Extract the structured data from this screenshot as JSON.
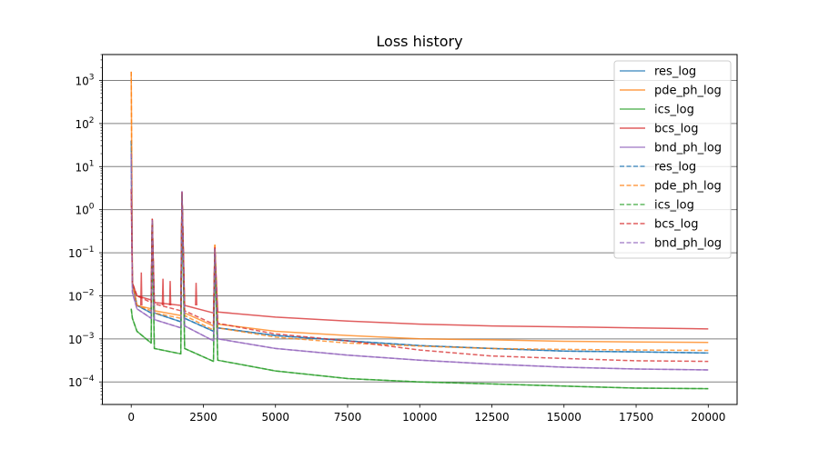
{
  "chart_data": {
    "type": "line",
    "title": "Loss history",
    "xlabel": "",
    "ylabel": "",
    "yscale": "log",
    "xlim": [
      -1000,
      21000
    ],
    "ylim": [
      3e-05,
      4000
    ],
    "grid": "horizontal",
    "legend_placement": "top-right",
    "x_ticks": [
      0,
      2500,
      5000,
      7500,
      10000,
      12500,
      15000,
      17500,
      20000
    ],
    "x_tick_labels": [
      "0",
      "2500",
      "5000",
      "7500",
      "10000",
      "12500",
      "15000",
      "17500",
      "20000"
    ],
    "y_ticks": [
      0.0001,
      0.001,
      0.01,
      0.1,
      1,
      10,
      100,
      1000
    ],
    "y_tick_labels": [
      {
        "base": "10",
        "exp": "−4"
      },
      {
        "base": "10",
        "exp": "−3"
      },
      {
        "base": "10",
        "exp": "−2"
      },
      {
        "base": "10",
        "exp": "−1"
      },
      {
        "base": "10",
        "exp": "0"
      },
      {
        "base": "10",
        "exp": "1"
      },
      {
        "base": "10",
        "exp": "2"
      },
      {
        "base": "10",
        "exp": "3"
      }
    ],
    "series": [
      {
        "name": "res_log",
        "color": "#1f77b4",
        "style": "solid",
        "x": [
          0,
          40,
          200,
          690,
          730,
          800,
          1720,
          1760,
          1850,
          2850,
          2900,
          3000,
          5000,
          7500,
          10000,
          12500,
          15000,
          17500,
          20000
        ],
        "y": [
          40,
          0.02,
          0.006,
          0.004,
          0.55,
          0.004,
          0.0025,
          2.4,
          0.003,
          0.0015,
          0.12,
          0.0018,
          0.0012,
          0.0009,
          0.0007,
          0.0006,
          0.00052,
          0.0005,
          0.00047
        ]
      },
      {
        "name": "pde_ph_log",
        "color": "#ff7f0e",
        "style": "solid",
        "x": [
          0,
          40,
          200,
          690,
          730,
          800,
          1720,
          1760,
          1850,
          2850,
          2900,
          3000,
          5000,
          7500,
          10000,
          12500,
          15000,
          17500,
          20000
        ],
        "y": [
          1600,
          0.02,
          0.006,
          0.005,
          0.6,
          0.0045,
          0.0035,
          2.5,
          0.004,
          0.002,
          0.15,
          0.0022,
          0.0015,
          0.0012,
          0.001,
          0.00095,
          0.00088,
          0.00085,
          0.00083
        ]
      },
      {
        "name": "ics_log",
        "color": "#2ca02c",
        "style": "solid",
        "x": [
          0,
          40,
          200,
          690,
          730,
          800,
          1720,
          1760,
          1850,
          2850,
          2900,
          3000,
          5000,
          7500,
          10000,
          12500,
          15000,
          17500,
          20000
        ],
        "y": [
          0.005,
          0.003,
          0.0015,
          0.0008,
          0.5,
          0.0006,
          0.00045,
          2.2,
          0.0006,
          0.0003,
          0.1,
          0.00032,
          0.00018,
          0.00012,
          0.0001,
          9e-05,
          8e-05,
          7.2e-05,
          7e-05
        ]
      },
      {
        "name": "bcs_log",
        "color": "#d62728",
        "style": "solid",
        "x": [
          0,
          40,
          200,
          690,
          730,
          800,
          1720,
          1760,
          1850,
          2850,
          2900,
          3000,
          5000,
          7500,
          10000,
          12500,
          15000,
          17500,
          20000
        ],
        "y": [
          3,
          0.02,
          0.01,
          0.008,
          0.6,
          0.007,
          0.006,
          2.5,
          0.006,
          0.004,
          0.13,
          0.0042,
          0.0032,
          0.0026,
          0.0022,
          0.002,
          0.0019,
          0.0018,
          0.0017
        ]
      },
      {
        "name": "bnd_ph_log",
        "color": "#9467bd",
        "style": "solid",
        "x": [
          0,
          40,
          200,
          690,
          730,
          800,
          1720,
          1760,
          1850,
          2850,
          2900,
          3000,
          5000,
          7500,
          10000,
          12500,
          15000,
          17500,
          20000
        ],
        "y": [
          20,
          0.012,
          0.005,
          0.003,
          0.6,
          0.0028,
          0.0018,
          2.6,
          0.002,
          0.0009,
          0.12,
          0.001,
          0.0006,
          0.00042,
          0.00032,
          0.00026,
          0.00022,
          0.0002,
          0.00019
        ]
      },
      {
        "name": "res_log",
        "color": "#1f77b4",
        "style": "dashed",
        "x": [
          0,
          40,
          200,
          690,
          730,
          800,
          1720,
          1760,
          1850,
          2850,
          2900,
          3000,
          5000,
          7500,
          10000,
          12500,
          15000,
          17500,
          20000
        ],
        "y": [
          40,
          0.02,
          0.006,
          0.004,
          0.55,
          0.004,
          0.0025,
          2.4,
          0.003,
          0.0015,
          0.12,
          0.0018,
          0.0012,
          0.0009,
          0.0007,
          0.0006,
          0.00052,
          0.0005,
          0.00047
        ]
      },
      {
        "name": "pde_ph_log",
        "color": "#ff7f0e",
        "style": "dashed",
        "x": [
          0,
          40,
          200,
          690,
          730,
          800,
          1720,
          1760,
          1850,
          2850,
          2900,
          3000,
          5000,
          7500,
          10000,
          12500,
          15000,
          17500,
          20000
        ],
        "y": [
          1600,
          0.02,
          0.006,
          0.0045,
          0.6,
          0.004,
          0.003,
          2.5,
          0.0035,
          0.0016,
          0.15,
          0.0018,
          0.0011,
          0.0008,
          0.00068,
          0.0006,
          0.00057,
          0.00055,
          0.00054
        ]
      },
      {
        "name": "ics_log",
        "color": "#2ca02c",
        "style": "dashed",
        "x": [
          0,
          40,
          200,
          690,
          730,
          800,
          1720,
          1760,
          1850,
          2850,
          2900,
          3000,
          5000,
          7500,
          10000,
          12500,
          15000,
          17500,
          20000
        ],
        "y": [
          0.005,
          0.003,
          0.0015,
          0.0008,
          0.5,
          0.0006,
          0.00045,
          2.2,
          0.0006,
          0.0003,
          0.1,
          0.00032,
          0.00018,
          0.00012,
          0.0001,
          9e-05,
          8e-05,
          7.2e-05,
          7e-05
        ]
      },
      {
        "name": "bcs_log",
        "color": "#d62728",
        "style": "dashed",
        "x": [
          0,
          40,
          200,
          690,
          730,
          800,
          1720,
          1760,
          1850,
          2850,
          2900,
          3000,
          5000,
          7500,
          10000,
          12500,
          15000,
          17500,
          20000
        ],
        "y": [
          3,
          0.02,
          0.01,
          0.007,
          0.6,
          0.0065,
          0.0045,
          2.5,
          0.0045,
          0.0022,
          0.13,
          0.0023,
          0.0013,
          0.0009,
          0.00055,
          0.0004,
          0.00035,
          0.00031,
          0.0003
        ]
      },
      {
        "name": "bnd_ph_log",
        "color": "#9467bd",
        "style": "dashed",
        "x": [
          0,
          40,
          200,
          690,
          730,
          800,
          1720,
          1760,
          1850,
          2850,
          2900,
          3000,
          5000,
          7500,
          10000,
          12500,
          15000,
          17500,
          20000
        ],
        "y": [
          20,
          0.012,
          0.005,
          0.003,
          0.6,
          0.0028,
          0.0018,
          2.6,
          0.002,
          0.0009,
          0.12,
          0.001,
          0.0006,
          0.00042,
          0.00032,
          0.00026,
          0.00022,
          0.0002,
          0.00019
        ]
      }
    ],
    "minor_spikes": [
      {
        "x": 350,
        "y": 0.035
      },
      {
        "x": 1100,
        "y": 0.025
      },
      {
        "x": 1350,
        "y": 0.022
      },
      {
        "x": 2250,
        "y": 0.02
      }
    ]
  }
}
